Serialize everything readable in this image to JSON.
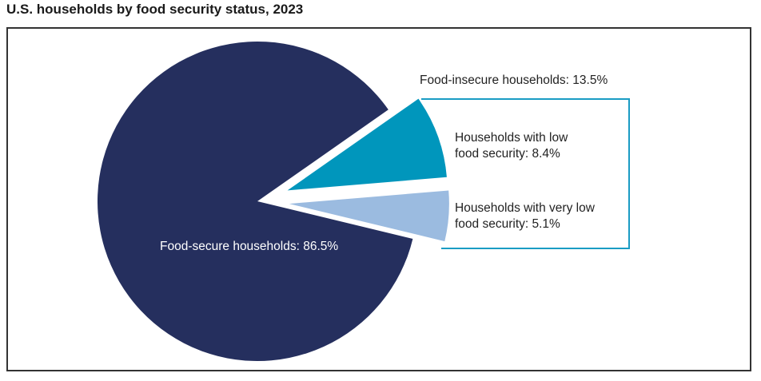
{
  "title": "U.S. households by food security status, 2023",
  "chart_data": {
    "type": "pie",
    "title": "U.S. households by food security status, 2023",
    "slices": [
      {
        "label": "Households with low food security",
        "label_lines": [
          "Households with low",
          "food security: 8.4%"
        ],
        "value": 8.4,
        "color": "#0096bc",
        "exploded": true
      },
      {
        "label": "Households with very low food security",
        "label_lines": [
          "Households with very low",
          "food security: 5.1%"
        ],
        "value": 5.1,
        "color": "#9bbbe0",
        "exploded": true
      },
      {
        "label": "Food-secure households",
        "label_text": "Food-secure households: 86.5%",
        "value": 86.5,
        "color": "#252f5e",
        "exploded": false
      }
    ],
    "group_annotation": "Food-insecure households: 13.5%",
    "group_color": "#1a9cc4"
  }
}
